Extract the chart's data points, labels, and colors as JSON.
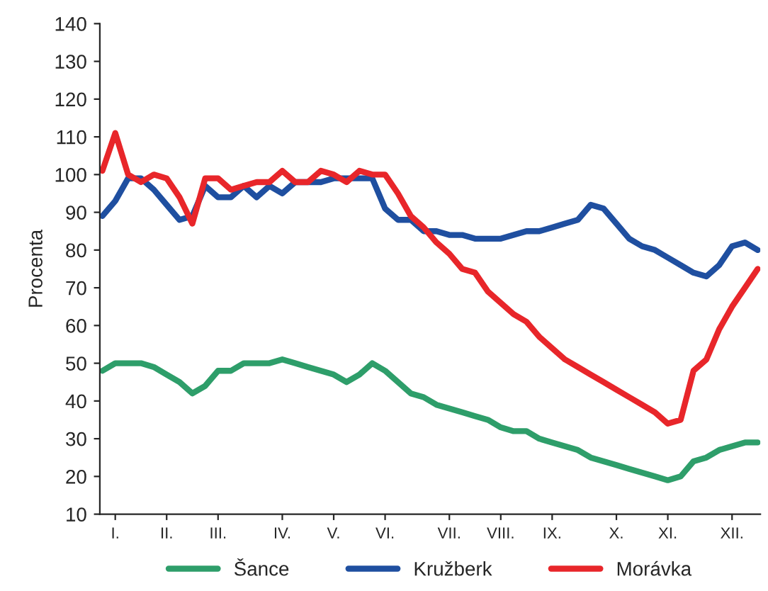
{
  "chart_data": {
    "type": "line",
    "ylabel": "Procenta",
    "categories": [
      null,
      "I.",
      null,
      null,
      null,
      "II.",
      null,
      null,
      null,
      "III.",
      null,
      null,
      null,
      null,
      "IV.",
      null,
      null,
      null,
      "V.",
      null,
      null,
      null,
      "VI.",
      null,
      null,
      null,
      null,
      "VII.",
      null,
      null,
      null,
      "VIII.",
      null,
      null,
      null,
      "IX.",
      null,
      null,
      null,
      null,
      "X.",
      null,
      null,
      null,
      "XI.",
      null,
      null,
      null,
      null,
      "XII.",
      null,
      null
    ],
    "series": [
      {
        "name": "Šance",
        "color": "#2e9e6a",
        "values": [
          48,
          50,
          50,
          50,
          49,
          47,
          45,
          42,
          44,
          48,
          48,
          50,
          50,
          50,
          51,
          50,
          49,
          48,
          47,
          45,
          47,
          50,
          48,
          45,
          42,
          41,
          39,
          38,
          37,
          36,
          35,
          33,
          32,
          32,
          30,
          29,
          28,
          27,
          25,
          24,
          23,
          22,
          21,
          20,
          19,
          20,
          24,
          25,
          27,
          28,
          29,
          29
        ]
      },
      {
        "name": "Kružberk",
        "color": "#1f4fa0",
        "values": [
          89,
          93,
          99,
          99,
          96,
          92,
          88,
          89,
          97,
          94,
          94,
          97,
          94,
          97,
          95,
          98,
          98,
          98,
          99,
          99,
          99,
          99,
          91,
          88,
          88,
          85,
          85,
          84,
          84,
          83,
          83,
          83,
          84,
          85,
          85,
          86,
          87,
          88,
          92,
          91,
          87,
          83,
          81,
          80,
          78,
          76,
          74,
          73,
          76,
          81,
          82,
          80
        ]
      },
      {
        "name": "Morávka",
        "color": "#e8262a",
        "values": [
          101,
          111,
          100,
          98,
          100,
          99,
          94,
          87,
          99,
          99,
          96,
          97,
          98,
          98,
          101,
          98,
          98,
          101,
          100,
          98,
          101,
          100,
          100,
          95,
          89,
          86,
          82,
          79,
          75,
          74,
          69,
          66,
          63,
          61,
          57,
          54,
          51,
          49,
          47,
          45,
          43,
          41,
          39,
          37,
          34,
          35,
          48,
          51,
          59,
          65,
          70,
          75
        ]
      }
    ],
    "ylim": [
      10,
      140
    ],
    "yticks": [
      10,
      20,
      30,
      40,
      50,
      60,
      70,
      80,
      90,
      100,
      110,
      120,
      130,
      140
    ],
    "grid": false,
    "legend": "bottom"
  }
}
